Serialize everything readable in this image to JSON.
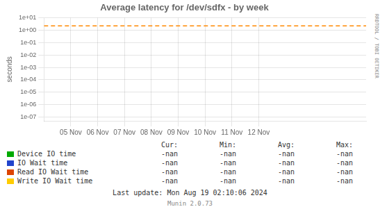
{
  "chart_data": {
    "type": "line",
    "title": "Average latency for /dev/sdfx - by week",
    "y_label": "seconds",
    "log": "y",
    "grid": true,
    "xlim": [
      1730678400,
      1731715200
    ],
    "xticks": [
      {
        "value": 1730764800,
        "label": "05 Nov"
      },
      {
        "value": 1730851200,
        "label": "06 Nov"
      },
      {
        "value": 1730937600,
        "label": "07 Nov"
      },
      {
        "value": 1731024000,
        "label": "08 Nov"
      },
      {
        "value": 1731110400,
        "label": "09 Nov"
      },
      {
        "value": 1731196800,
        "label": "10 Nov"
      },
      {
        "value": 1731283200,
        "label": "11 Nov"
      },
      {
        "value": 1731369600,
        "label": "12 Nov"
      }
    ],
    "ylim": [
      5e-08,
      10
    ],
    "yticks": [
      {
        "value": 1e-07,
        "label": "1e-07"
      },
      {
        "value": 1e-06,
        "label": "1e-06"
      },
      {
        "value": 1e-05,
        "label": "1e-05"
      },
      {
        "value": 0.0001,
        "label": "1e-04"
      },
      {
        "value": 0.001,
        "label": "1e-03"
      },
      {
        "value": 0.01,
        "label": "1e-02"
      },
      {
        "value": 0.1,
        "label": "1e-01"
      },
      {
        "value": 1,
        "label": "1e+00"
      },
      {
        "value": 10,
        "label": "1e+01"
      }
    ],
    "x": [],
    "series": [
      {
        "name": "Device IO time",
        "color": "#00aa00",
        "values": []
      },
      {
        "name": "IO Wait time",
        "color": "#2244cc",
        "values": []
      },
      {
        "name": "Read IO Wait time",
        "color": "#dd4400",
        "values": []
      },
      {
        "name": "Write IO Wait time",
        "color": "#ffcc00",
        "values": []
      }
    ],
    "hlines": [
      {
        "y": 2.2,
        "color": "#ff8800",
        "line_style": "dashed"
      }
    ],
    "legend_columns": [
      "Cur:",
      "Min:",
      "Avg:",
      "Max:"
    ],
    "legend_values": [
      "-nan",
      "-nan",
      "-nan",
      "-nan"
    ],
    "annotations": [
      "Last update: Mon Aug 19 02:10:06 2024",
      "Munin 2.0.73",
      "RRDTOOL / TOBI OETIKER"
    ]
  }
}
